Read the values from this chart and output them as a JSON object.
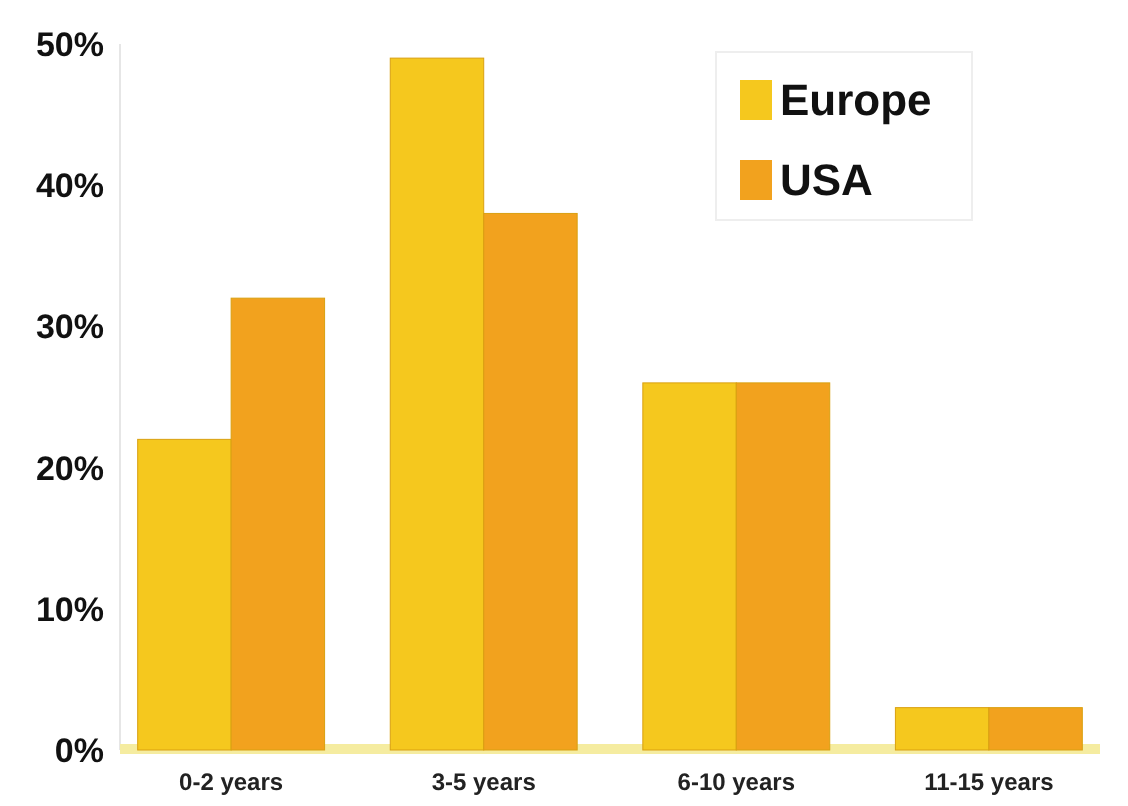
{
  "chart_data": {
    "type": "bar",
    "categories": [
      "0-2 years",
      "3-5 years",
      "6-10 years",
      "11-15 years"
    ],
    "series": [
      {
        "name": "Europe",
        "color": "#f5c81e",
        "values": [
          22,
          49,
          26,
          3
        ]
      },
      {
        "name": "USA",
        "color": "#f2a21e",
        "values": [
          32,
          38,
          26,
          3
        ]
      }
    ],
    "ylim": [
      0,
      50
    ],
    "yticks": [
      {
        "value": 0,
        "label": "0%"
      },
      {
        "value": 10,
        "label": "10%"
      },
      {
        "value": 20,
        "label": "20%"
      },
      {
        "value": 30,
        "label": "30%"
      },
      {
        "value": 40,
        "label": "40%"
      },
      {
        "value": 50,
        "label": "50%"
      }
    ],
    "grid": false,
    "legend": "top right"
  }
}
